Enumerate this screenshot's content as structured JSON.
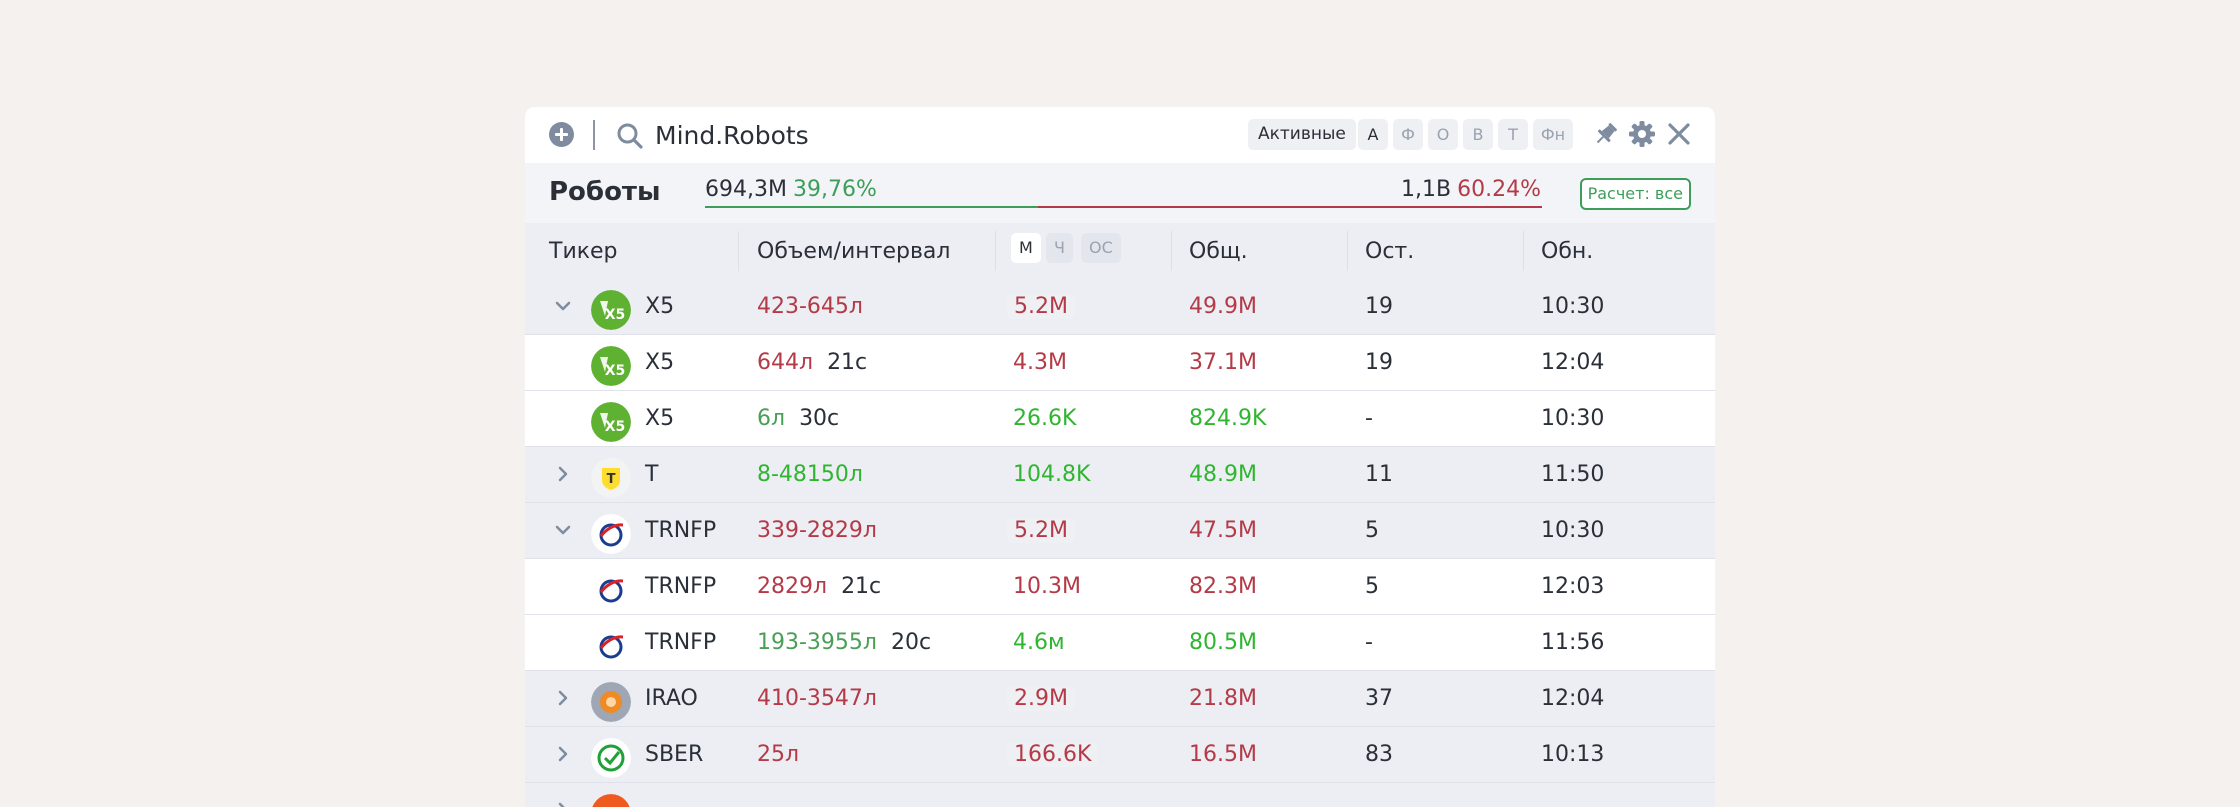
{
  "colors": {
    "accent_green": "#3d9e5a",
    "accent_red": "#b43a47",
    "bright_green": "#2fb52f"
  },
  "header": {
    "search_value": "Mind.Robots",
    "status_filter": "Активные",
    "filters": [
      {
        "label": "А",
        "active": true
      },
      {
        "label": "Ф",
        "active": false
      },
      {
        "label": "О",
        "active": false
      },
      {
        "label": "В",
        "active": false
      },
      {
        "label": "Т",
        "active": false
      },
      {
        "label": "Фн",
        "active": false
      }
    ],
    "icons": [
      "add-icon",
      "search-icon",
      "pin-icon",
      "gear-icon",
      "close-icon"
    ]
  },
  "summary": {
    "title": "Роботы",
    "left_value": "694,3М",
    "left_pct": "39,76%",
    "right_value": "1,1В",
    "right_pct": "60.24%",
    "left_share": 0.3976,
    "calc_label": "Расчет: все"
  },
  "columns": {
    "ticker": "Тикер",
    "volume": "Объем/интервал",
    "modes": [
      {
        "label": "М",
        "active": true
      },
      {
        "label": "Ч",
        "active": false
      },
      {
        "label": "ОС",
        "active": false
      }
    ],
    "total": "Общ.",
    "remaining": "Ост.",
    "updated": "Обн."
  },
  "rows": [
    {
      "type": "group",
      "expanded": true,
      "logo": "x5",
      "ticker": "X5",
      "volume": "423-645л",
      "volume_color": "red",
      "interval": "",
      "rate": "5.2M",
      "rate_color": "red",
      "rate_boxed": true,
      "total": "49.9M",
      "total_color": "red",
      "remaining": "19",
      "updated": "10:30"
    },
    {
      "type": "child",
      "logo": "x5",
      "ticker": "X5",
      "volume": "644л",
      "volume_color": "red",
      "interval": "21с",
      "rate": "4.3M",
      "rate_color": "red",
      "rate_boxed": false,
      "total": "37.1M",
      "total_color": "red",
      "remaining": "19",
      "updated": "12:04"
    },
    {
      "type": "child",
      "logo": "x5",
      "ticker": "X5",
      "volume": "6л",
      "volume_color": "lgreen",
      "interval": "30с",
      "rate": "26.6K",
      "rate_color": "green",
      "rate_boxed": false,
      "total": "824.9K",
      "total_color": "green",
      "remaining": "-",
      "updated": "10:30"
    },
    {
      "type": "group",
      "expanded": false,
      "logo": "t",
      "ticker": "T",
      "volume": "8-48150л",
      "volume_color": "green",
      "interval": "",
      "rate": "104.8K",
      "rate_color": "green",
      "rate_boxed": false,
      "total": "48.9M",
      "total_color": "green",
      "remaining": "11",
      "updated": "11:50"
    },
    {
      "type": "group",
      "expanded": true,
      "logo": "trnfp",
      "ticker": "TRNFP",
      "volume": "339-2829л",
      "volume_color": "red",
      "interval": "",
      "rate": "5.2M",
      "rate_color": "red",
      "rate_boxed": true,
      "total": "47.5M",
      "total_color": "red",
      "remaining": "5",
      "updated": "10:30"
    },
    {
      "type": "child",
      "logo": "trnfp",
      "ticker": "TRNFP",
      "volume": "2829л",
      "volume_color": "red",
      "interval": "21с",
      "rate": "10.3M",
      "rate_color": "red",
      "rate_boxed": false,
      "total": "82.3M",
      "total_color": "red",
      "remaining": "5",
      "updated": "12:03"
    },
    {
      "type": "child",
      "logo": "trnfp",
      "ticker": "TRNFP",
      "volume": "193-3955л",
      "volume_color": "lgreen",
      "interval": "20с",
      "rate": "4.6м",
      "rate_color": "green",
      "rate_boxed": false,
      "total": "80.5M",
      "total_color": "green",
      "remaining": "-",
      "updated": "11:56"
    },
    {
      "type": "group",
      "expanded": false,
      "logo": "irao",
      "ticker": "IRAO",
      "volume": "410-3547л",
      "volume_color": "red",
      "interval": "",
      "rate": "2.9M",
      "rate_color": "red",
      "rate_boxed": true,
      "total": "21.8M",
      "total_color": "red",
      "remaining": "37",
      "updated": "12:04"
    },
    {
      "type": "group",
      "expanded": false,
      "logo": "sber",
      "ticker": "SBER",
      "volume": "25л",
      "volume_color": "red",
      "interval": "",
      "rate": "166.6K",
      "rate_color": "red",
      "rate_boxed": true,
      "total": "16.5M",
      "total_color": "red",
      "remaining": "83",
      "updated": "10:13"
    },
    {
      "type": "group",
      "expanded": false,
      "logo": "orange",
      "ticker": "",
      "volume": "",
      "volume_color": "red",
      "interval": "",
      "rate": "",
      "rate_color": "red",
      "rate_boxed": true,
      "total": "",
      "total_color": "red",
      "remaining": "",
      "updated": ""
    }
  ]
}
